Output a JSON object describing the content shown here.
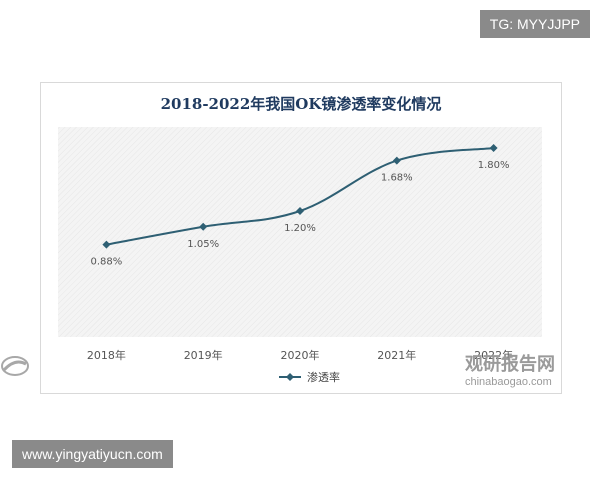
{
  "overlay": {
    "tg_label": "TG: MYYJJPP",
    "site_url": "www.yingyatiyucn.com"
  },
  "watermark": {
    "brand_cn": "观研报告网",
    "brand_en": "chinabaogao.com"
  },
  "chart_data": {
    "type": "line",
    "title": "2018-2022年我国OK镜渗透率变化情况",
    "categories": [
      "2018年",
      "2019年",
      "2020年",
      "2021年",
      "2022年"
    ],
    "series": [
      {
        "name": "渗透率",
        "values": [
          0.88,
          1.05,
          1.2,
          1.68,
          1.8
        ],
        "labels": [
          "0.88%",
          "1.05%",
          "1.20%",
          "1.68%",
          "1.80%"
        ]
      }
    ],
    "ylim": [
      0,
      2.0
    ],
    "grid": false,
    "legend": "bottom",
    "colors": {
      "series": "#2e5f73",
      "plot_bg": "#f2f2f2"
    }
  }
}
